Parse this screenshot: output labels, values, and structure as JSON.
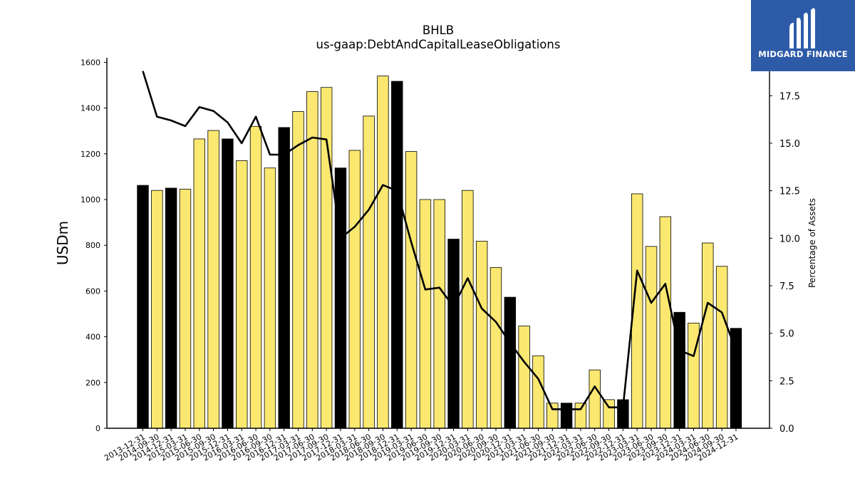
{
  "chart_data": {
    "type": "bar",
    "title": "BHLB",
    "subtitle": "us-gaap:DebtAndCapitalLeaseObligations",
    "ylabel": "USDm",
    "y2label": "Percentage of Assets",
    "ylim": [
      0,
      1620
    ],
    "y2lim": [
      0,
      19.5
    ],
    "yticks": [
      0,
      200,
      400,
      600,
      800,
      1000,
      1200,
      1400,
      1600
    ],
    "y2ticks": [
      0.0,
      2.5,
      5.0,
      7.5,
      10.0,
      12.5,
      15.0,
      17.5
    ],
    "categories": [
      "2013-12-31",
      "2014-09-30",
      "2014-12-31",
      "2015-03-31",
      "2015-06-30",
      "2015-09-30",
      "2015-12-31",
      "2016-03-31",
      "2016-06-30",
      "2016-09-30",
      "2016-12-31",
      "2017-03-31",
      "2017-06-30",
      "2017-09-30",
      "2017-12-31",
      "2018-03-31",
      "2018-06-30",
      "2018-09-30",
      "2018-12-31",
      "2019-03-31",
      "2019-06-30",
      "2019-09-30",
      "2019-12-31",
      "2020-03-31",
      "2020-06-30",
      "2020-09-30",
      "2020-12-31",
      "2021-03-31",
      "2021-06-30",
      "2021-09-30",
      "2021-12-31",
      "2022-03-31",
      "2022-06-30",
      "2022-09-30",
      "2022-12-31",
      "2023-03-31",
      "2023-06-30",
      "2023-09-30",
      "2023-12-31",
      "2024-03-31",
      "2024-06-30",
      "2024-09-30",
      "2024-12-31"
    ],
    "series": [
      {
        "kind": "bar",
        "values": [
          1062,
          1040,
          1050,
          1045,
          1265,
          1302,
          1265,
          1170,
          1320,
          1138,
          1315,
          1385,
          1472,
          1490,
          1138,
          1215,
          1365,
          1540,
          1517,
          1210,
          1000,
          1000,
          827,
          1040,
          818,
          703,
          573,
          447,
          317,
          110,
          110,
          110,
          255,
          125,
          125,
          1025,
          795,
          925,
          507,
          460,
          810,
          708,
          437
        ],
        "highlight": [
          true,
          false,
          true,
          false,
          false,
          false,
          true,
          false,
          false,
          false,
          true,
          false,
          false,
          false,
          true,
          false,
          false,
          false,
          true,
          false,
          false,
          false,
          true,
          false,
          false,
          false,
          true,
          false,
          false,
          false,
          true,
          false,
          false,
          false,
          true,
          false,
          false,
          false,
          true,
          false,
          false,
          false,
          true
        ],
        "color": "#fbe870",
        "highlight_color": "#000000"
      },
      {
        "kind": "line",
        "axis": "right",
        "values": [
          18.8,
          16.4,
          16.2,
          15.9,
          16.9,
          16.7,
          16.1,
          15.0,
          16.4,
          14.4,
          14.4,
          14.9,
          15.3,
          15.2,
          10.0,
          10.6,
          11.5,
          12.8,
          12.5,
          9.8,
          7.3,
          7.4,
          6.4,
          7.9,
          6.3,
          5.6,
          4.5,
          3.5,
          2.6,
          1.0,
          1.0,
          1.0,
          2.2,
          1.1,
          1.1,
          8.3,
          6.6,
          7.6,
          4.1,
          3.8,
          6.6,
          6.1,
          4.1
        ],
        "color": "#000000"
      }
    ]
  },
  "logo": {
    "text": "MIDGARD FINANCE"
  }
}
